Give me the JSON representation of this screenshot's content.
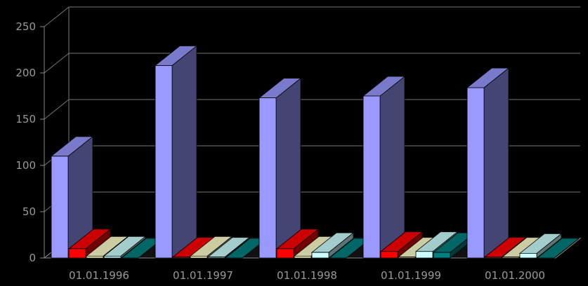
{
  "chart_data": {
    "type": "bar",
    "categories": [
      "01.01.1996",
      "01.01.1997",
      "01.01.1998",
      "01.01.1999",
      "01.01.2000"
    ],
    "series": [
      {
        "values": [
          110,
          208,
          173,
          175,
          184
        ],
        "color": "#9999ff"
      },
      {
        "values": [
          10,
          1,
          10,
          7,
          1
        ],
        "color": "#ff0000"
      },
      {
        "values": [
          2,
          2,
          2,
          1,
          1
        ],
        "color": "#ffffcc"
      },
      {
        "values": [
          2,
          1,
          6,
          7,
          5
        ],
        "color": "#ccffff"
      },
      {
        "values": [
          0,
          0,
          0,
          6,
          0
        ],
        "color": "#008080"
      }
    ],
    "y_ticks": [
      0,
      50,
      100,
      150,
      200,
      250
    ],
    "ylim": [
      0,
      250
    ],
    "grid": true,
    "style": "3d",
    "background": "#000000"
  }
}
